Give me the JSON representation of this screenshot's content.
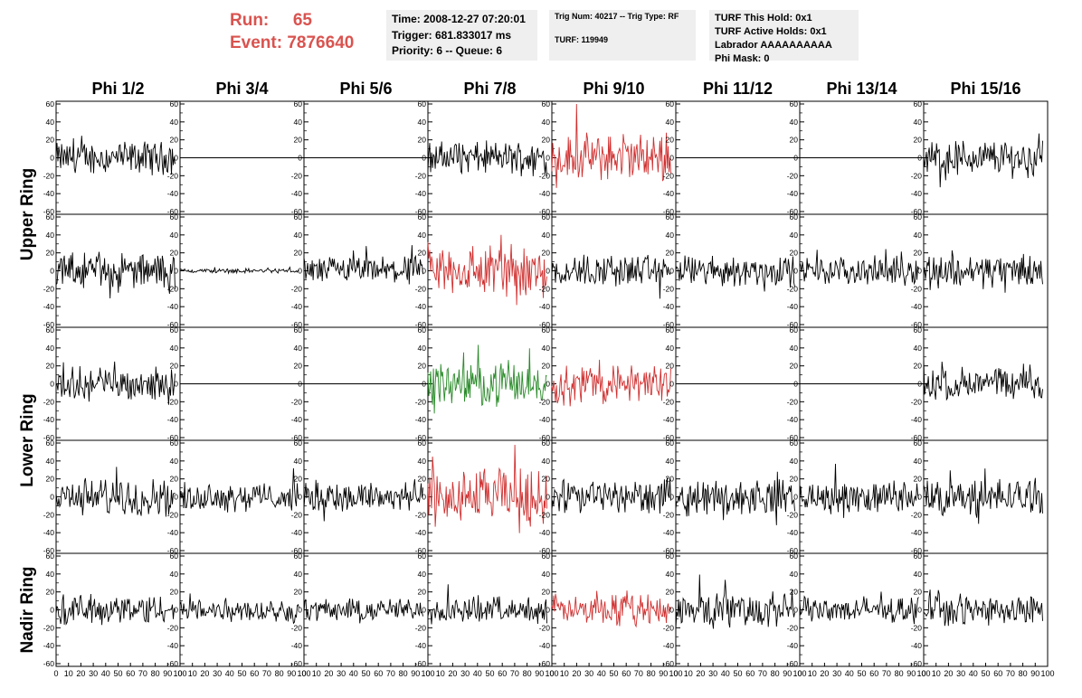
{
  "header": {
    "run_label": "Run:",
    "run_value": "65",
    "event_label": "Event:",
    "event_value": "7876640",
    "time_lines": [
      "Time: 2008-12-27 07:20:01",
      "Trigger: 681.833017 ms",
      "Priority: 6 -- Queue: 6"
    ],
    "trig_lines": [
      "Trig Num: 40217 -- Trig Type: RF",
      "TURF: 119949"
    ],
    "turf_lines": [
      "TURF This Hold: 0x1",
      "TURF Active Holds: 0x1",
      "Labrador AAAAAAAAAA",
      "Phi Mask: 0"
    ]
  },
  "colors": {
    "header_red": "#d9534f",
    "trace_black": "#000000",
    "trace_red": "#d03030",
    "trace_green": "#2a8a2a",
    "info_bg": "#efefef"
  },
  "chart_data": {
    "type": "line",
    "columns": [
      "Phi 1/2",
      "Phi 3/4",
      "Phi 5/6",
      "Phi 7/8",
      "Phi 9/10",
      "Phi 11/12",
      "Phi 13/14",
      "Phi 15/16"
    ],
    "row_groups": [
      "Upper Ring",
      "Lower Ring",
      "Nadir Ring"
    ],
    "xlim": [
      0,
      100
    ],
    "ylim": [
      -60,
      60
    ],
    "x_ticks": [
      0,
      10,
      20,
      30,
      40,
      50,
      60,
      70,
      80,
      90,
      100
    ],
    "x_tick_labels": [
      "0",
      "10",
      "20",
      "30",
      "40",
      "50",
      "60",
      "70",
      "80",
      "90",
      "100"
    ],
    "y_ticks": [
      -60,
      -40,
      -20,
      0,
      20,
      40,
      60
    ],
    "y_tick_labels": [
      "-60",
      "-40",
      "-20",
      "0",
      "20",
      "40",
      "60"
    ],
    "trace_x_range": [
      0,
      96
    ],
    "panels": [
      [
        {
          "amp": 14,
          "color": "black"
        },
        {
          "amp": 0,
          "color": "black"
        },
        {
          "amp": 0,
          "color": "black"
        },
        {
          "amp": 14,
          "color": "black"
        },
        {
          "amp": 20,
          "color": "red",
          "spike": [
            20,
            62
          ]
        },
        {
          "amp": 0,
          "color": "black"
        },
        {
          "amp": 0,
          "color": "black"
        },
        {
          "amp": 16,
          "color": "black"
        }
      ],
      [
        {
          "amp": 15,
          "color": "black"
        },
        {
          "amp": 2,
          "color": "black"
        },
        {
          "amp": 12,
          "color": "black"
        },
        {
          "amp": 24,
          "color": "red"
        },
        {
          "amp": 14,
          "color": "black"
        },
        {
          "amp": 13,
          "color": "black"
        },
        {
          "amp": 12,
          "color": "black"
        },
        {
          "amp": 15,
          "color": "black"
        }
      ],
      [
        {
          "amp": 14,
          "color": "black"
        },
        {
          "amp": 0,
          "color": "black"
        },
        {
          "amp": 0,
          "color": "black"
        },
        {
          "amp": 18,
          "color": "green"
        },
        {
          "amp": 17,
          "color": "red"
        },
        {
          "amp": 0,
          "color": "black"
        },
        {
          "amp": 0,
          "color": "black"
        },
        {
          "amp": 14,
          "color": "black"
        }
      ],
      [
        {
          "amp": 16,
          "color": "black"
        },
        {
          "amp": 12,
          "color": "black"
        },
        {
          "amp": 14,
          "color": "black"
        },
        {
          "amp": 24,
          "color": "red",
          "spike": [
            70,
            58
          ]
        },
        {
          "amp": 15,
          "color": "black"
        },
        {
          "amp": 15,
          "color": "black"
        },
        {
          "amp": 14,
          "color": "black"
        },
        {
          "amp": 16,
          "color": "black"
        }
      ],
      [
        {
          "amp": 13,
          "color": "black"
        },
        {
          "amp": 10,
          "color": "black"
        },
        {
          "amp": 10,
          "color": "black"
        },
        {
          "amp": 11,
          "color": "black"
        },
        {
          "amp": 13,
          "color": "red"
        },
        {
          "amp": 16,
          "color": "black"
        },
        {
          "amp": 11,
          "color": "black"
        },
        {
          "amp": 13,
          "color": "black"
        }
      ]
    ]
  }
}
